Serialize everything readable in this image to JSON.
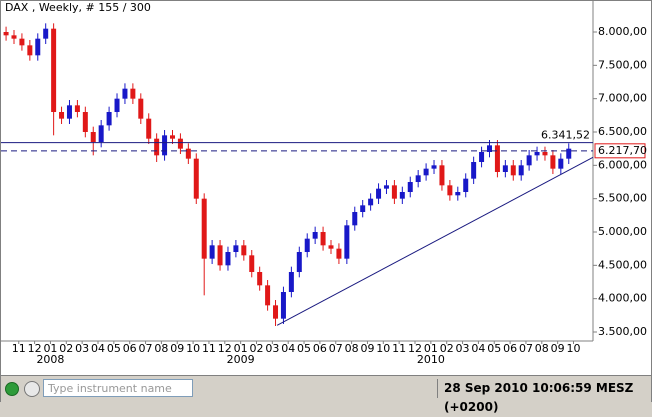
{
  "chart_data": {
    "type": "candlestick",
    "title": "DAX , Weekly, # 155 / 300",
    "x": [
      -2.8,
      -2.3,
      -1.8,
      -1.3,
      -0.8,
      -0.3,
      0.2,
      0.7,
      1.2,
      1.7,
      2.2,
      2.7,
      3.2,
      3.7,
      4.2,
      4.7,
      5.2,
      5.7,
      6.2,
      6.7,
      7.2,
      7.7,
      8.2,
      8.7,
      9.2,
      9.7,
      10.2,
      10.7,
      11.2,
      11.7,
      12.2,
      12.7,
      13.2,
      13.7,
      14.2,
      14.7,
      15.2,
      15.7,
      16.2,
      16.7,
      17.2,
      17.7,
      18.2,
      18.7,
      19.2,
      19.7,
      20.2,
      20.7,
      21.2,
      21.7,
      22.2,
      22.7,
      23.2,
      23.7,
      24.2,
      24.7,
      25.2,
      25.7,
      26.2,
      26.7,
      27.2,
      27.7,
      28.2,
      28.7,
      29.2,
      29.7,
      30.2,
      30.7,
      31.2,
      31.7,
      32.2,
      32.7
    ],
    "open": [
      8000,
      7950,
      7900,
      7800,
      7650,
      7900,
      8050,
      6800,
      6700,
      6900,
      6800,
      6500,
      6350,
      6600,
      6800,
      7000,
      7150,
      7000,
      6700,
      6400,
      6150,
      6450,
      6400,
      6250,
      6100,
      5500,
      4600,
      4800,
      4500,
      4700,
      4800,
      4650,
      4400,
      4200,
      3900,
      3700,
      4100,
      4400,
      4700,
      4900,
      5000,
      4800,
      4750,
      4600,
      5100,
      5300,
      5400,
      5500,
      5650,
      5700,
      5500,
      5600,
      5750,
      5850,
      5950,
      6000,
      5700,
      5550,
      5600,
      5800,
      6050,
      6200,
      6300,
      5900,
      6000,
      5850,
      6000,
      6150,
      6200,
      6150,
      5950,
      6100
    ],
    "high": [
      8080,
      8030,
      7980,
      7880,
      7980,
      8130,
      8130,
      6880,
      6980,
      6980,
      6880,
      6580,
      6680,
      6880,
      7080,
      7230,
      7230,
      7080,
      6780,
      6480,
      6530,
      6530,
      6480,
      6330,
      6180,
      5580,
      4880,
      4880,
      4780,
      4880,
      4880,
      4730,
      4480,
      4280,
      3980,
      4180,
      4480,
      4780,
      4980,
      5080,
      5080,
      4880,
      4830,
      5180,
      5380,
      5480,
      5580,
      5730,
      5780,
      5780,
      5680,
      5830,
      5930,
      6030,
      6080,
      6080,
      5780,
      5680,
      5880,
      6130,
      6280,
      6380,
      6380,
      6080,
      6080,
      6080,
      6230,
      6280,
      6280,
      6230,
      6180,
      6330
    ],
    "low": [
      7870,
      7820,
      7720,
      7570,
      7570,
      7820,
      6450,
      6620,
      6620,
      6720,
      6420,
      6150,
      6270,
      6520,
      6720,
      6920,
      6920,
      6620,
      6320,
      6050,
      6070,
      6320,
      6170,
      6020,
      5420,
      4050,
      4520,
      4420,
      4420,
      4620,
      4570,
      4320,
      4120,
      3820,
      3590,
      3620,
      4020,
      4320,
      4620,
      4820,
      4720,
      4670,
      4520,
      4520,
      5020,
      5220,
      5320,
      5420,
      5570,
      5420,
      5420,
      5520,
      5670,
      5770,
      5870,
      5620,
      5470,
      5470,
      5520,
      5720,
      5970,
      6120,
      5820,
      5820,
      5770,
      5770,
      5920,
      6070,
      6070,
      5870,
      5870,
      6020
    ],
    "close": [
      7950,
      7900,
      7800,
      7650,
      7900,
      8050,
      6800,
      6700,
      6900,
      6800,
      6500,
      6350,
      6600,
      6800,
      7000,
      7150,
      7000,
      6700,
      6400,
      6150,
      6450,
      6400,
      6250,
      6100,
      5500,
      4600,
      4800,
      4500,
      4700,
      4800,
      4650,
      4400,
      4200,
      3900,
      3700,
      4100,
      4400,
      4700,
      4900,
      5000,
      4800,
      4750,
      4600,
      5100,
      5300,
      5400,
      5500,
      5650,
      5700,
      5500,
      5600,
      5750,
      5850,
      5950,
      6000,
      5700,
      5550,
      5600,
      5800,
      6050,
      6200,
      6300,
      5900,
      6000,
      5850,
      6000,
      6150,
      6200,
      6150,
      5950,
      6100,
      6250
    ],
    "up_color": "#1818c8",
    "down_color": "#e01818",
    "xlim": [
      -3.12,
      34.23
    ],
    "ylim": [
      3365,
      8465
    ],
    "yticks": [
      {
        "value": 3500,
        "label": "3.500,00"
      },
      {
        "value": 4000,
        "label": "4.000,00"
      },
      {
        "value": 4500,
        "label": "4.500,00"
      },
      {
        "value": 5000,
        "label": "5.000,00"
      },
      {
        "value": 5500,
        "label": "5.500,00"
      },
      {
        "value": 6000,
        "label": "6.000,00"
      },
      {
        "value": 6500,
        "label": "6.500,00"
      },
      {
        "value": 7000,
        "label": "7.000,00"
      },
      {
        "value": 7500,
        "label": "7.500,00"
      },
      {
        "value": 8000,
        "label": "8.000,00"
      }
    ],
    "xticks": [
      {
        "value": -2,
        "label": "11"
      },
      {
        "value": -1,
        "label": "12"
      },
      {
        "value": 0,
        "label": "01"
      },
      {
        "value": 1,
        "label": "02"
      },
      {
        "value": 2,
        "label": "03"
      },
      {
        "value": 3,
        "label": "04"
      },
      {
        "value": 4,
        "label": "05"
      },
      {
        "value": 5,
        "label": "06"
      },
      {
        "value": 6,
        "label": "07"
      },
      {
        "value": 7,
        "label": "08"
      },
      {
        "value": 8,
        "label": "09"
      },
      {
        "value": 9,
        "label": "10"
      },
      {
        "value": 10,
        "label": "11"
      },
      {
        "value": 11,
        "label": "12"
      },
      {
        "value": 12,
        "label": "01"
      },
      {
        "value": 13,
        "label": "02"
      },
      {
        "value": 14,
        "label": "03"
      },
      {
        "value": 15,
        "label": "04"
      },
      {
        "value": 16,
        "label": "05"
      },
      {
        "value": 17,
        "label": "06"
      },
      {
        "value": 18,
        "label": "07"
      },
      {
        "value": 19,
        "label": "08"
      },
      {
        "value": 20,
        "label": "09"
      },
      {
        "value": 21,
        "label": "10"
      },
      {
        "value": 22,
        "label": "11"
      },
      {
        "value": 23,
        "label": "12"
      },
      {
        "value": 24,
        "label": "01"
      },
      {
        "value": 25,
        "label": "02"
      },
      {
        "value": 26,
        "label": "03"
      },
      {
        "value": 27,
        "label": "04"
      },
      {
        "value": 28,
        "label": "05"
      },
      {
        "value": 29,
        "label": "06"
      },
      {
        "value": 30,
        "label": "07"
      },
      {
        "value": 31,
        "label": "08"
      },
      {
        "value": 32,
        "label": "09"
      },
      {
        "value": 33,
        "label": "10"
      }
    ],
    "year_ticks": [
      {
        "value": 0,
        "label": "2008"
      },
      {
        "value": 12,
        "label": "2009"
      },
      {
        "value": 24,
        "label": "2010"
      }
    ],
    "levels": [
      {
        "value": 6341.52,
        "label": "6.341,52",
        "style": "solid",
        "color": "#1a1a80"
      },
      {
        "value": 6217.7,
        "label": "6.217,70",
        "style": "dashed",
        "color": "#1a1a80"
      }
    ],
    "trendline": {
      "x": [
        14.3,
        34.23
      ],
      "y": [
        3600,
        6120
      ],
      "color": "#1a1a80"
    }
  },
  "status_bar": {
    "search_placeholder": "Type instrument name",
    "datetime": "28 Sep 2010 10:06:59  MESZ (+0200)"
  }
}
